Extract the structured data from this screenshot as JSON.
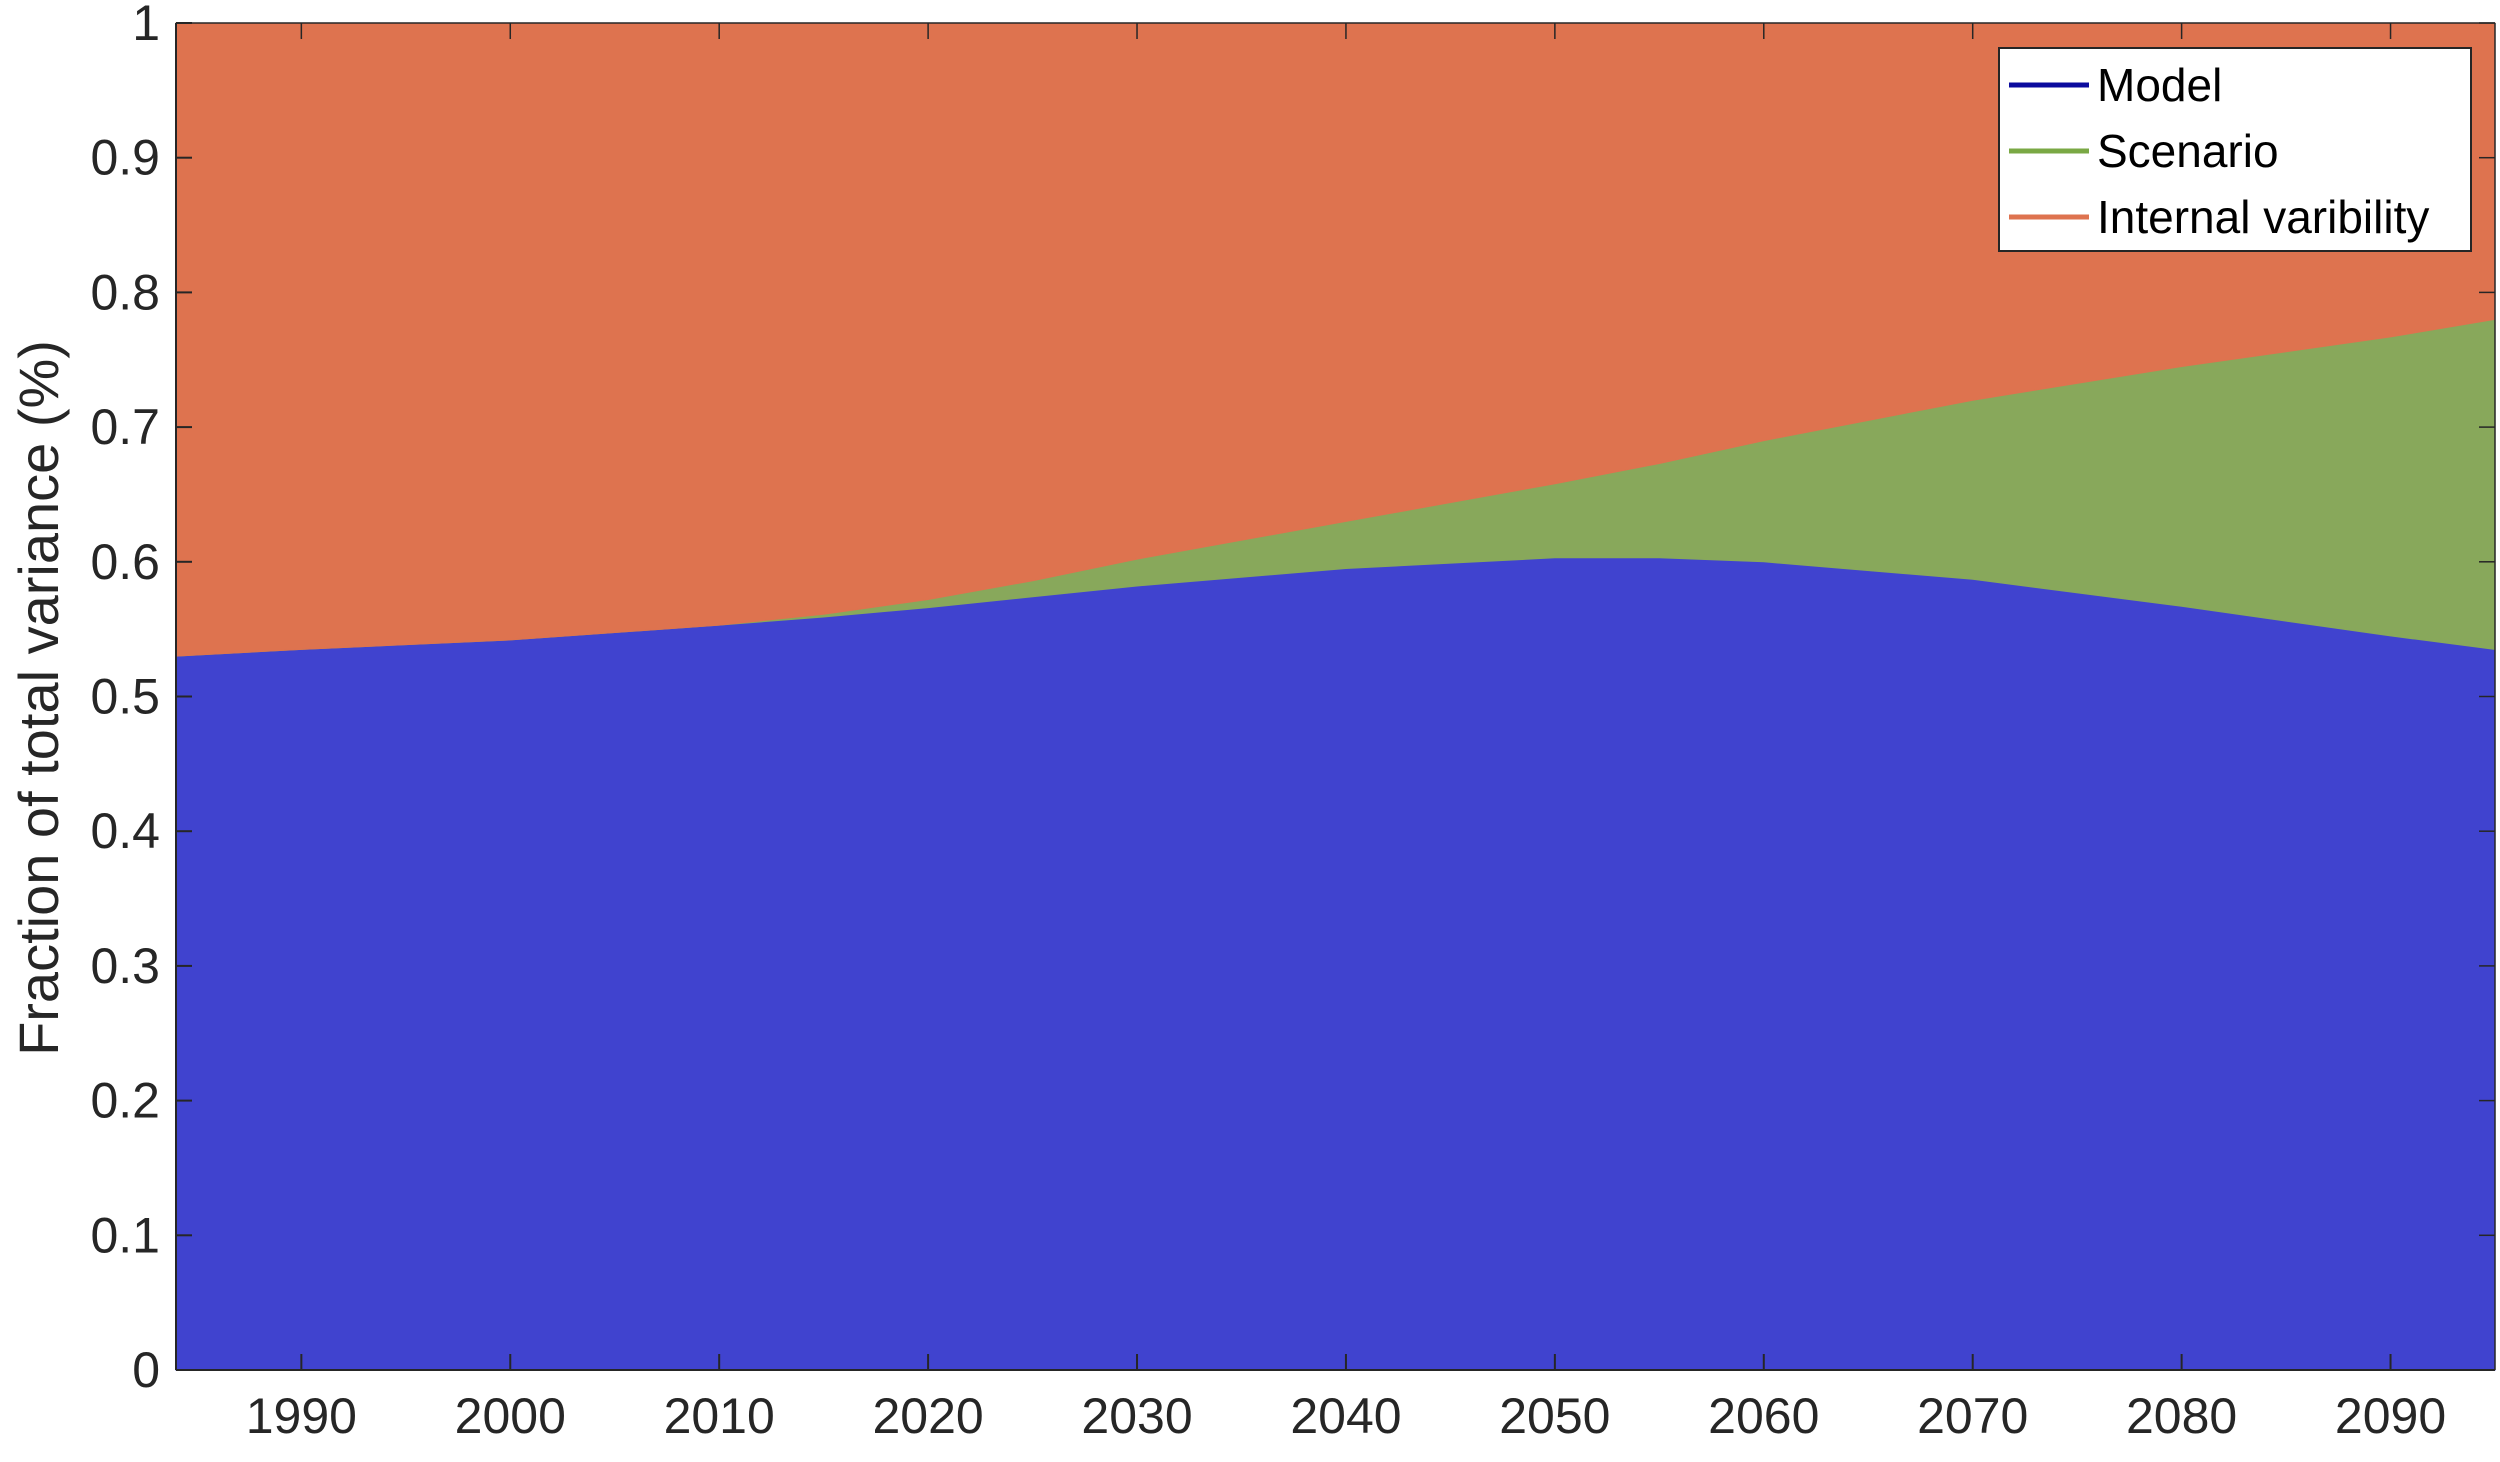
{
  "chart_data": {
    "type": "area",
    "stacked": true,
    "title": "",
    "xlabel": "",
    "ylabel": "Fraction of total variance (%)",
    "xlim": [
      1984,
      2095
    ],
    "ylim": [
      0,
      1
    ],
    "xticks": [
      1990,
      2000,
      2010,
      2020,
      2030,
      2040,
      2050,
      2060,
      2070,
      2080,
      2090
    ],
    "xtick_labels": [
      "1990",
      "2000",
      "2010",
      "2020",
      "2030",
      "2040",
      "2050",
      "2060",
      "2070",
      "2080",
      "2090"
    ],
    "yticks": [
      0,
      0.1,
      0.2,
      0.3,
      0.4,
      0.5,
      0.6,
      0.7,
      0.8,
      0.9,
      1
    ],
    "ytick_labels": [
      "0",
      "0.1",
      "0.2",
      "0.3",
      "0.4",
      "0.5",
      "0.6",
      "0.7",
      "0.8",
      "0.9",
      "1"
    ],
    "grid": false,
    "legend_position": "top-right",
    "x": [
      1984,
      1990,
      2000,
      2010,
      2015,
      2020,
      2025,
      2030,
      2040,
      2050,
      2055,
      2060,
      2070,
      2080,
      2090,
      2095
    ],
    "series": [
      {
        "name": "Model",
        "color": "#4043cf",
        "legend_color": "#0b0b9e",
        "values": [
          0.53,
          0.535,
          0.542,
          0.553,
          0.559,
          0.566,
          0.574,
          0.582,
          0.595,
          0.603,
          0.603,
          0.6,
          0.587,
          0.567,
          0.545,
          0.535
        ]
      },
      {
        "name": "Scenario",
        "color": "#88a85b",
        "legend_color": "#7aa844",
        "values": [
          0.0,
          0.0,
          0.0,
          0.0,
          0.002,
          0.006,
          0.012,
          0.02,
          0.035,
          0.055,
          0.07,
          0.09,
          0.133,
          0.178,
          0.222,
          0.245
        ]
      },
      {
        "name": "Internal varibility",
        "color": "#de734f",
        "legend_color": "#de734f",
        "values": [
          0.47,
          0.465,
          0.458,
          0.447,
          0.439,
          0.428,
          0.414,
          0.398,
          0.37,
          0.342,
          0.327,
          0.31,
          0.28,
          0.255,
          0.233,
          0.22
        ]
      }
    ]
  }
}
